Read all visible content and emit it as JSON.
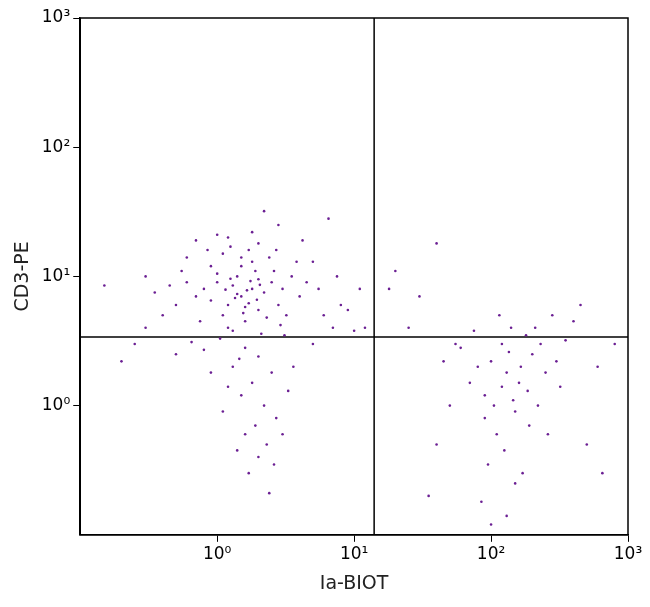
{
  "chart_data": {
    "type": "scatter",
    "x_label": "Ia-BIOT",
    "y_label": "CD3-PE",
    "log": true,
    "grid": false,
    "color": "#6b1f93",
    "marker": "circle",
    "xlim": [
      0.1,
      1000
    ],
    "ylim": [
      0.1,
      1000
    ],
    "xticks": [
      {
        "value": 1,
        "label": "10⁰"
      },
      {
        "value": 10,
        "label": "10¹"
      },
      {
        "value": 100,
        "label": "10²"
      },
      {
        "value": 1000,
        "label": "10³"
      }
    ],
    "yticks": [
      {
        "value": 1,
        "label": "10⁰"
      },
      {
        "value": 10,
        "label": "10¹"
      },
      {
        "value": 100,
        "label": "10²"
      },
      {
        "value": 1000,
        "label": "10³"
      }
    ],
    "gates": {
      "x": 14,
      "y": 3.4
    },
    "points": [
      [
        1.5,
        7
      ],
      [
        1.2,
        6
      ],
      [
        1.8,
        8
      ],
      [
        2,
        5.5
      ],
      [
        1,
        9
      ],
      [
        1.4,
        10
      ],
      [
        1.6,
        4.5
      ],
      [
        2.2,
        7.5
      ],
      [
        0.9,
        6.5
      ],
      [
        1.3,
        8.5
      ],
      [
        1.7,
        6.2
      ],
      [
        2.5,
        9
      ],
      [
        1.1,
        5
      ],
      [
        0.8,
        8
      ],
      [
        1.9,
        11
      ],
      [
        2.3,
        4.8
      ],
      [
        1.5,
        12
      ],
      [
        1.2,
        4
      ],
      [
        2.8,
        6
      ],
      [
        0.7,
        7
      ],
      [
        1.6,
        5.8
      ],
      [
        1.4,
        7.3
      ],
      [
        2,
        9.5
      ],
      [
        1,
        10.5
      ],
      [
        1.8,
        13
      ],
      [
        2.6,
        11
      ],
      [
        0.6,
        9
      ],
      [
        3,
        8
      ],
      [
        1.3,
        3.8
      ],
      [
        2.1,
        3.6
      ],
      [
        1.5,
        14
      ],
      [
        0.9,
        12
      ],
      [
        1.1,
        15
      ],
      [
        2.4,
        14
      ],
      [
        3.5,
        10
      ],
      [
        0.5,
        6
      ],
      [
        0.55,
        11
      ],
      [
        4,
        7
      ],
      [
        3.2,
        5
      ],
      [
        0.75,
        4.5
      ],
      [
        1.7,
        16
      ],
      [
        2,
        18
      ],
      [
        1.25,
        17
      ],
      [
        0.85,
        16
      ],
      [
        2.7,
        16
      ],
      [
        3.8,
        13
      ],
      [
        4.5,
        9
      ],
      [
        5.5,
        8
      ],
      [
        0.45,
        8.5
      ],
      [
        0.4,
        5
      ],
      [
        0.35,
        7.5
      ],
      [
        0.3,
        4
      ],
      [
        0.25,
        3
      ],
      [
        0.2,
        2.2
      ],
      [
        0.15,
        8.5
      ],
      [
        0.3,
        10
      ],
      [
        1.2,
        20
      ],
      [
        1.8,
        22
      ],
      [
        2.8,
        25
      ],
      [
        2.2,
        32
      ],
      [
        1,
        21
      ],
      [
        0.6,
        14
      ],
      [
        0.7,
        19
      ],
      [
        1.6,
        2.8
      ],
      [
        2,
        2.4
      ],
      [
        1.3,
        2
      ],
      [
        2.5,
        1.8
      ],
      [
        1.8,
        1.5
      ],
      [
        1.5,
        1.2
      ],
      [
        2.2,
        1
      ],
      [
        1.1,
        0.9
      ],
      [
        2.7,
        0.8
      ],
      [
        1.9,
        0.7
      ],
      [
        1.6,
        0.6
      ],
      [
        2.3,
        0.5
      ],
      [
        1.4,
        0.45
      ],
      [
        2,
        0.4
      ],
      [
        2.6,
        0.35
      ],
      [
        3,
        0.6
      ],
      [
        1.7,
        0.3
      ],
      [
        2.4,
        0.21
      ],
      [
        1.2,
        1.4
      ],
      [
        0.9,
        1.8
      ],
      [
        3.3,
        1.3
      ],
      [
        3.6,
        2
      ],
      [
        5,
        3
      ],
      [
        6,
        5
      ],
      [
        7,
        4
      ],
      [
        8,
        6
      ],
      [
        9,
        5.5
      ],
      [
        10,
        3.8
      ],
      [
        12,
        4
      ],
      [
        11,
        8
      ],
      [
        6.5,
        28
      ],
      [
        4.2,
        19
      ],
      [
        5,
        13
      ],
      [
        7.5,
        10
      ],
      [
        3.1,
        3.5
      ],
      [
        2.9,
        4.2
      ],
      [
        1.05,
        3.3
      ],
      [
        0.65,
        3.1
      ],
      [
        0.8,
        2.7
      ],
      [
        0.5,
        2.5
      ],
      [
        1.45,
        2.3
      ],
      [
        1.75,
        9.2
      ],
      [
        1.35,
        6.8
      ],
      [
        1.65,
        7.8
      ],
      [
        1.95,
        6.6
      ],
      [
        1.15,
        7.9
      ],
      [
        1.55,
        5.2
      ],
      [
        2.05,
        8.6
      ],
      [
        1.25,
        9.6
      ],
      [
        130,
        1.8
      ],
      [
        100,
        2.2
      ],
      [
        160,
        1.5
      ],
      [
        120,
        3
      ],
      [
        90,
        1.2
      ],
      [
        200,
        2.5
      ],
      [
        150,
        0.9
      ],
      [
        110,
        0.6
      ],
      [
        180,
        3.5
      ],
      [
        80,
        2
      ],
      [
        140,
        4
      ],
      [
        250,
        1.8
      ],
      [
        70,
        1.5
      ],
      [
        220,
        1
      ],
      [
        125,
        0.45
      ],
      [
        95,
        0.35
      ],
      [
        170,
        0.3
      ],
      [
        60,
        2.8
      ],
      [
        300,
        2.2
      ],
      [
        350,
        3.2
      ],
      [
        400,
        4.5
      ],
      [
        280,
        5
      ],
      [
        210,
        4
      ],
      [
        115,
        5
      ],
      [
        75,
        3.8
      ],
      [
        50,
        1
      ],
      [
        45,
        2.2
      ],
      [
        40,
        0.5
      ],
      [
        35,
        0.2
      ],
      [
        85,
        0.18
      ],
      [
        130,
        0.14
      ],
      [
        190,
        0.7
      ],
      [
        260,
        0.6
      ],
      [
        150,
        0.25
      ],
      [
        105,
        1
      ],
      [
        135,
        2.6
      ],
      [
        165,
        2
      ],
      [
        145,
        1.1
      ],
      [
        185,
        1.3
      ],
      [
        55,
        3
      ],
      [
        230,
        3
      ],
      [
        320,
        1.4
      ],
      [
        500,
        0.5
      ],
      [
        650,
        0.3
      ],
      [
        600,
        2
      ],
      [
        800,
        3
      ],
      [
        450,
        6
      ],
      [
        90,
        0.8
      ],
      [
        120,
        1.4
      ],
      [
        100,
        0.12
      ],
      [
        30,
        7
      ],
      [
        20,
        11
      ],
      [
        40,
        18
      ],
      [
        25,
        4
      ],
      [
        18,
        8
      ]
    ]
  }
}
